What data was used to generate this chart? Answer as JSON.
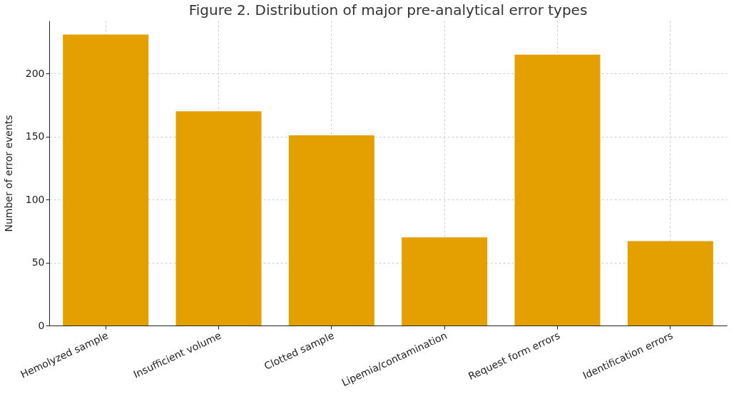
{
  "chart_data": {
    "type": "bar",
    "title": "Figure 2. Distribution of major pre-analytical error types",
    "ylabel": "Number of error events",
    "categories": [
      "Hemolyzed sample",
      "Insufficient volume",
      "Clotted sample",
      "Lipemia/contamination",
      "Request form errors",
      "Identification errors"
    ],
    "values": [
      231,
      170,
      151,
      70,
      215,
      67
    ],
    "color": "#e3a000",
    "ylim": [
      0,
      242
    ],
    "yticks": [
      0,
      50,
      100,
      150,
      200
    ],
    "grid": true
  }
}
